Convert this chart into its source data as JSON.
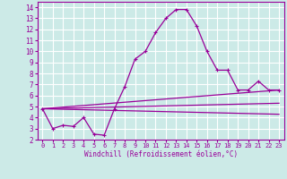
{
  "xlabel": "Windchill (Refroidissement éolien,°C)",
  "background_color": "#cceae7",
  "grid_color": "#ffffff",
  "line_color": "#990099",
  "xlim": [
    -0.5,
    23.5
  ],
  "ylim": [
    2,
    14.5
  ],
  "xticks": [
    0,
    1,
    2,
    3,
    4,
    5,
    6,
    7,
    8,
    9,
    10,
    11,
    12,
    13,
    14,
    15,
    16,
    17,
    18,
    19,
    20,
    21,
    22,
    23
  ],
  "yticks": [
    2,
    3,
    4,
    5,
    6,
    7,
    8,
    9,
    10,
    11,
    12,
    13,
    14
  ],
  "main_line_x": [
    0,
    1,
    2,
    3,
    4,
    5,
    6,
    7,
    8,
    9,
    10,
    11,
    12,
    13,
    14,
    15,
    16,
    17,
    18,
    19,
    20,
    21,
    22,
    23
  ],
  "main_line_y": [
    4.8,
    3.0,
    3.3,
    3.2,
    4.0,
    2.5,
    2.4,
    4.8,
    6.8,
    9.3,
    10.0,
    11.7,
    13.0,
    13.8,
    13.8,
    12.3,
    10.0,
    8.3,
    8.3,
    6.5,
    6.5,
    7.3,
    6.5,
    6.5
  ],
  "straight_lines": [
    {
      "x": [
        0,
        23
      ],
      "y": [
        4.8,
        6.5
      ]
    },
    {
      "x": [
        0,
        23
      ],
      "y": [
        4.8,
        5.3
      ]
    },
    {
      "x": [
        0,
        23
      ],
      "y": [
        4.8,
        4.3
      ]
    }
  ]
}
